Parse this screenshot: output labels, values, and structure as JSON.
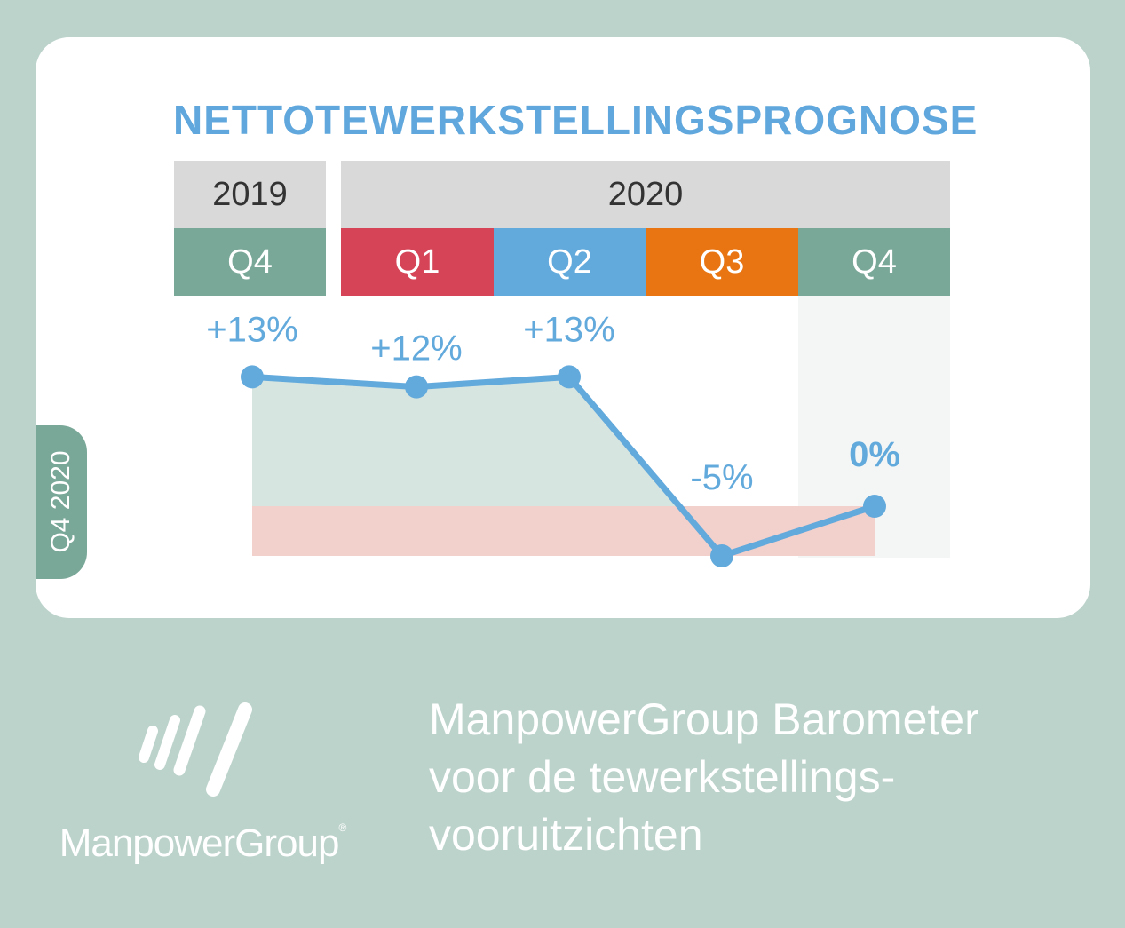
{
  "title": "NETTOTEWERKSTELLINGSPROGNOSE",
  "side_tab": "Q4 2020",
  "years": [
    {
      "label": "2019"
    },
    {
      "label": "2020"
    }
  ],
  "quarters": [
    {
      "label": "Q4",
      "color": "#7aa898"
    },
    {
      "label": "Q1",
      "color": "#d54457"
    },
    {
      "label": "Q2",
      "color": "#62a9dc"
    },
    {
      "label": "Q3",
      "color": "#e87511"
    },
    {
      "label": "Q4",
      "color": "#7aa898"
    }
  ],
  "chart_data": {
    "type": "line",
    "categories": [
      "2019 Q4",
      "2020 Q1",
      "2020 Q2",
      "2020 Q3",
      "2020 Q4"
    ],
    "values": [
      13,
      12,
      13,
      -5,
      0
    ],
    "data_labels": [
      "+13%",
      "+12%",
      "+13%",
      "-5%",
      "0%"
    ],
    "unit": "%",
    "highlight_index": 4,
    "line_color": "#62a9dc",
    "positive_fill": "#d6e5e0",
    "negative_fill": "#f2d0cc"
  },
  "brand": {
    "name": "ManpowerGroup",
    "registered": "®",
    "tagline": [
      "ManpowerGroup Barometer",
      "voor de tewerkstellings-",
      "vooruitzichten"
    ]
  },
  "colors": {
    "background": "#bcd3cb",
    "card": "#ffffff",
    "title": "#5fa7dc",
    "year_header": "#d9d9d9",
    "highlight_column": "#f4f6f5"
  }
}
